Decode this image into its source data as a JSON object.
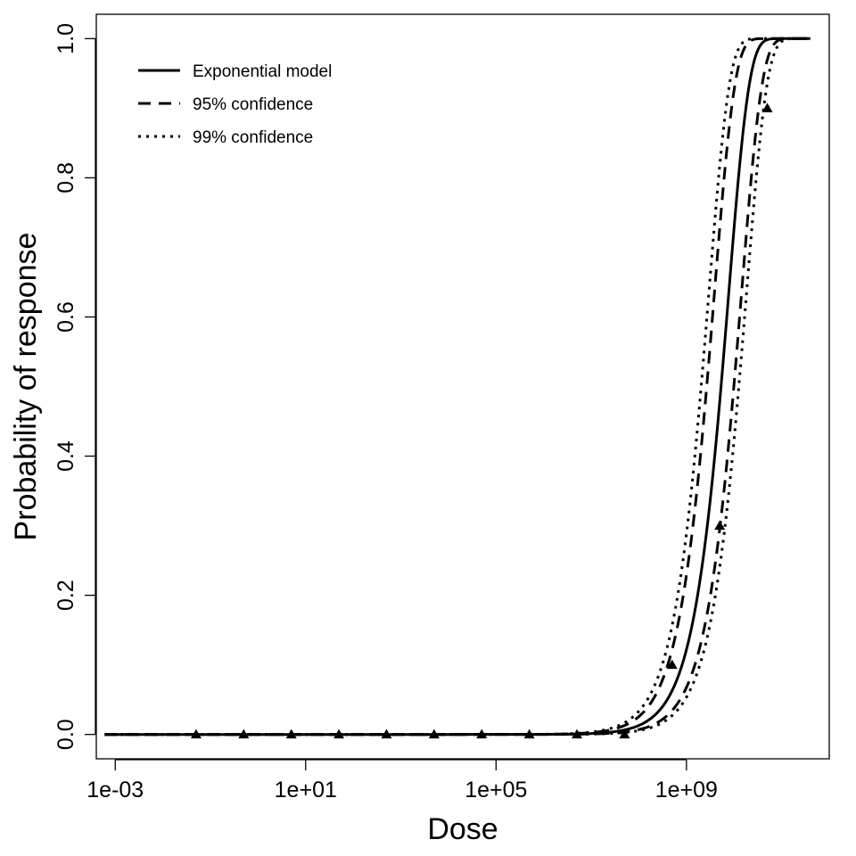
{
  "chart_data": {
    "type": "line",
    "title": "",
    "xlabel": "Dose",
    "ylabel": "Probability of response",
    "x_scale": "log10",
    "xlim": [
      0.0004,
      1000000000000.0
    ],
    "ylim": [
      -0.035,
      1.035
    ],
    "x_ticks": [
      {
        "value": 0.001,
        "label": "1e-03"
      },
      {
        "value": 10,
        "label": "1e+01"
      },
      {
        "value": 100000,
        "label": "1e+05"
      },
      {
        "value": 1000000000,
        "label": "1e+09"
      }
    ],
    "y_ticks": [
      {
        "value": 0.0,
        "label": "0.0"
      },
      {
        "value": 0.2,
        "label": "0.2"
      },
      {
        "value": 0.4,
        "label": "0.4"
      },
      {
        "value": 0.6,
        "label": "0.6"
      },
      {
        "value": 0.8,
        "label": "0.8"
      },
      {
        "value": 1.0,
        "label": "1.0"
      }
    ],
    "grid": false,
    "legend_position": "top-left",
    "curve_x_range": [
      0.0006,
      400000000000.0
    ],
    "series": [
      {
        "name": "Exponential model",
        "line_style": "solid",
        "k": 1.3e-10
      },
      {
        "name": "95% confidence",
        "line_style": "dashed",
        "k": 2.6e-10
      },
      {
        "name": "95% confidence",
        "line_style": "dashed",
        "k": 7e-11
      },
      {
        "name": "99% confidence",
        "line_style": "dotted",
        "k": 3.4e-10
      },
      {
        "name": "99% confidence",
        "line_style": "dotted",
        "k": 5.5e-11
      }
    ],
    "legend": [
      {
        "label": "Exponential model",
        "line_style": "solid"
      },
      {
        "label": "95% confidence",
        "line_style": "dashed"
      },
      {
        "label": "99% confidence",
        "line_style": "dotted"
      }
    ],
    "observations": {
      "marker": "triangle",
      "x": [
        0.05,
        0.5,
        5,
        50,
        500,
        5000,
        50000,
        500000,
        5000000,
        50000000,
        500000000,
        5000000000,
        50000000000
      ],
      "y": [
        0,
        0,
        0,
        0,
        0,
        0,
        0,
        0,
        0,
        0,
        0.1,
        0.3,
        0.9
      ]
    }
  }
}
